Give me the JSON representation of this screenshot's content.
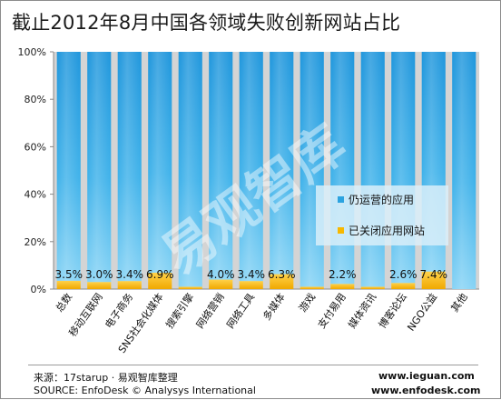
{
  "title": "截止2012年8月中国各领域失败创新网站占比",
  "watermark": "易观智库",
  "source_cn": "来源：17starup · 易观智库整理",
  "source_en": "SOURCE: EnfoDesk © Analysys International",
  "url1": "www.ieguan.com",
  "url2": "www.enfodesk.com",
  "colors": {
    "operating": "#2ba3e0",
    "operating_light": "#7fcdf2",
    "closed": "#f7b800",
    "plot_bg": "#d4d4d4",
    "legend_bg": "#d9eef9"
  },
  "chart_data": {
    "type": "bar",
    "stacked": true,
    "title": "截止2012年8月中国各领域失败创新网站占比",
    "categories": [
      "总数",
      "移动互联网",
      "电子商务",
      "SNS社会化媒体",
      "搜索引擎",
      "网络营销",
      "网络工具",
      "多媒体",
      "游戏",
      "支付易用",
      "媒体资讯",
      "博客论坛",
      "NGO公益",
      "其他"
    ],
    "series": [
      {
        "name": "仍运营的应用",
        "values": [
          96.5,
          97.0,
          96.6,
          93.1,
          99.0,
          96.0,
          96.6,
          93.7,
          99.0,
          97.8,
          99.0,
          97.4,
          92.6,
          100
        ]
      },
      {
        "name": "已关闭应用网站",
        "values": [
          3.5,
          3.0,
          3.4,
          6.9,
          1.0,
          4.0,
          3.4,
          6.3,
          1.0,
          2.2,
          1.0,
          2.6,
          7.4,
          0
        ]
      }
    ],
    "data_labels": [
      "3.5%",
      "3.0%",
      "3.4%",
      "6.9%",
      "",
      "4.0%",
      "3.4%",
      "6.3%",
      "",
      "2.2%",
      "",
      "2.6%",
      "7.4%",
      ""
    ],
    "ylim": [
      0,
      100
    ],
    "yticks": [
      0,
      20,
      40,
      60,
      80,
      100
    ],
    "ytick_labels": [
      "0%",
      "20%",
      "40%",
      "60%",
      "80%",
      "100%"
    ],
    "legend": {
      "position": "right-middle",
      "entries": [
        "仍运营的应用",
        "已关闭应用网站"
      ]
    },
    "grid": false
  }
}
